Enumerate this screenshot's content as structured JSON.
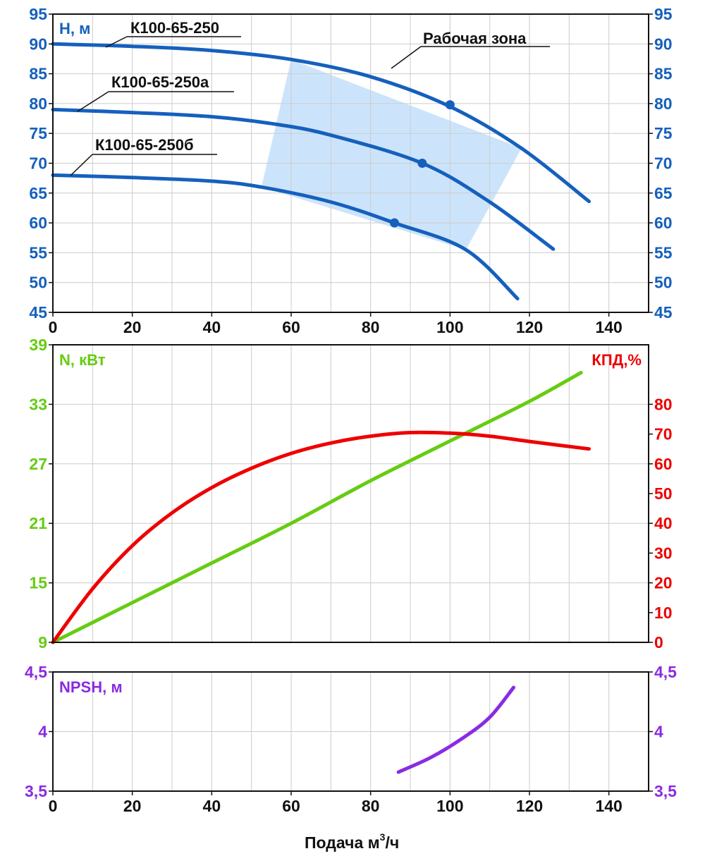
{
  "colors": {
    "head": "#1560bd",
    "power": "#66cc11",
    "efficiency": "#ee0000",
    "npsh": "#8a2be2",
    "zone": "#cce4fb",
    "grid": "#cccccc",
    "axis": "#111111"
  },
  "x_axis": {
    "title_main": "Подача м",
    "title_sup": "3",
    "title_end": "/ч",
    "range": [
      0,
      150
    ],
    "ticks": [
      "0",
      "20",
      "40",
      "60",
      "80",
      "100",
      "120",
      "140"
    ],
    "grid_step": 10
  },
  "chart_data": [
    {
      "type": "line",
      "panel": "head",
      "ylabel": "H, м",
      "ylim": [
        45,
        95
      ],
      "y_ticks": [
        "95",
        "90",
        "85",
        "80",
        "75",
        "70",
        "65",
        "60",
        "55",
        "50",
        "45"
      ],
      "grid": true,
      "work_zone": {
        "label": "Рабочая зона",
        "polygon": [
          [
            60,
            87.4
          ],
          [
            118,
            72.5
          ],
          [
            104,
            55.5
          ],
          [
            52.5,
            66
          ]
        ]
      },
      "series": [
        {
          "name": "К100-65-250",
          "points": [
            [
              0,
              90
            ],
            [
              20,
              89.6
            ],
            [
              40,
              88.9
            ],
            [
              60,
              87.4
            ],
            [
              80,
              84.5
            ],
            [
              100,
              79.5
            ],
            [
              118,
              72.5
            ],
            [
              135,
              63.6
            ]
          ],
          "marker": [
            100,
            79.8
          ]
        },
        {
          "name": "К100-65-250а",
          "points": [
            [
              0,
              79
            ],
            [
              20,
              78.5
            ],
            [
              40,
              77.8
            ],
            [
              56.5,
              76.5
            ],
            [
              70,
              74.7
            ],
            [
              93,
              70
            ],
            [
              110,
              63.5
            ],
            [
              126,
              55.6
            ]
          ],
          "marker": [
            93,
            70
          ]
        },
        {
          "name": "К100-65-250б",
          "points": [
            [
              0,
              68
            ],
            [
              20,
              67.6
            ],
            [
              40,
              67
            ],
            [
              52.5,
              66
            ],
            [
              70,
              63.5
            ],
            [
              86,
              60
            ],
            [
              104,
              55.5
            ],
            [
              117,
              47.3
            ]
          ],
          "marker": [
            86,
            60
          ]
        }
      ]
    },
    {
      "type": "line",
      "panel": "power_efficiency",
      "ylabel": "N, кВт",
      "ylabel_right": "КПД,%",
      "ylim": [
        9,
        39
      ],
      "y_ticks": [
        "39",
        "33",
        "27",
        "21",
        "15",
        "9"
      ],
      "ylim_right": [
        0,
        100
      ],
      "y_ticks_right": [
        "80",
        "70",
        "60",
        "50",
        "40",
        "30",
        "20",
        "10",
        "0"
      ],
      "grid": true,
      "series": [
        {
          "name": "N",
          "axis": "left",
          "points": [
            [
              0,
              9
            ],
            [
              20,
              13
            ],
            [
              40,
              17
            ],
            [
              60,
              21
            ],
            [
              80,
              25.3
            ],
            [
              100,
              29.3
            ],
            [
              120,
              33.3
            ],
            [
              133,
              36.2
            ]
          ]
        },
        {
          "name": "КПД",
          "axis": "right",
          "points": [
            [
              0,
              0
            ],
            [
              10,
              18
            ],
            [
              20,
              32.5
            ],
            [
              30,
              43.5
            ],
            [
              40,
              52
            ],
            [
              50,
              58.5
            ],
            [
              60,
              63.5
            ],
            [
              70,
              67
            ],
            [
              80,
              69.3
            ],
            [
              90,
              70.5
            ],
            [
              100,
              70.3
            ],
            [
              110,
              69.3
            ],
            [
              120,
              67.5
            ],
            [
              135,
              65
            ]
          ]
        }
      ]
    },
    {
      "type": "line",
      "panel": "npsh",
      "ylabel": "NPSH, м",
      "ylim": [
        3.5,
        4.5
      ],
      "y_ticks": [
        "4,5",
        "4",
        "3,5"
      ],
      "grid": true,
      "series": [
        {
          "name": "NPSH",
          "points": [
            [
              87,
              3.66
            ],
            [
              95,
              3.78
            ],
            [
              103,
              3.94
            ],
            [
              110,
              4.12
            ],
            [
              116,
              4.37
            ]
          ]
        }
      ]
    }
  ]
}
